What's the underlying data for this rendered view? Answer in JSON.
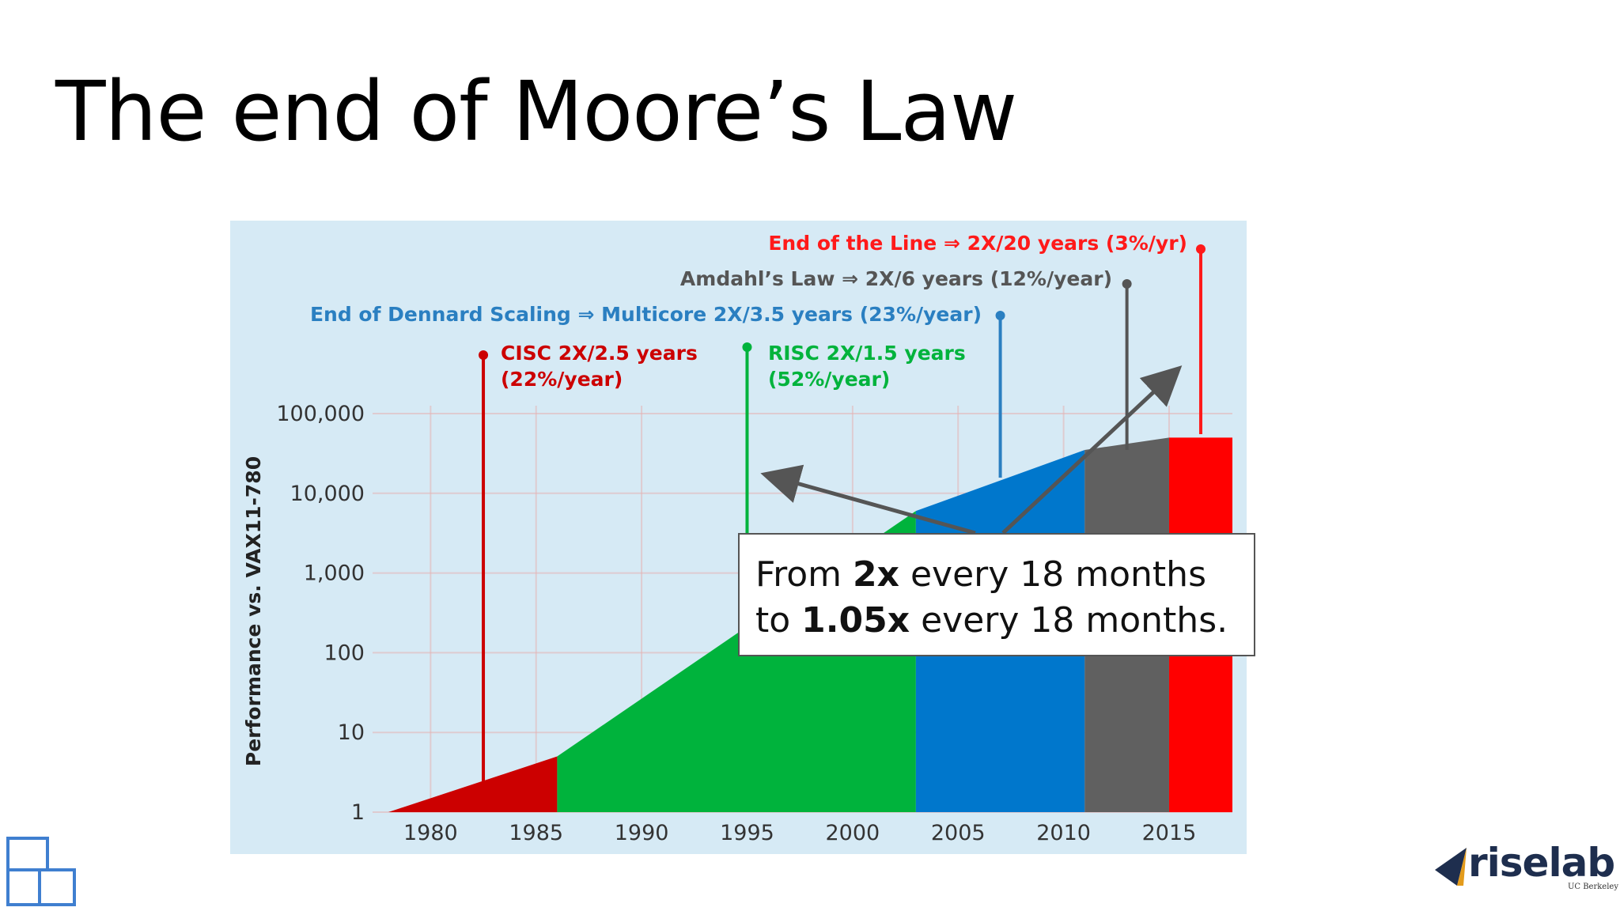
{
  "slide": {
    "title": "The end of Moore’s Law",
    "callout": {
      "line1_pre": "From ",
      "line1_bold": "2x",
      "line1_post": " every 18 months",
      "line2_pre": "to ",
      "line2_bold": "1.05x",
      "line2_post": " every 18 months."
    },
    "logo": {
      "name": "riselab",
      "subtitle": "UC Berkeley",
      "mark_icon": "riselab-triangle-icon"
    },
    "left_logo_icon": "stacked-squares-icon"
  },
  "chart_data": {
    "type": "area",
    "ylabel": "Performance vs. VAX11-780",
    "xlabel": "",
    "x_ticks": [
      1980,
      1985,
      1990,
      1995,
      2000,
      2005,
      2010,
      2015
    ],
    "y_ticks": [
      {
        "value": 1,
        "label": "1"
      },
      {
        "value": 10,
        "label": "10"
      },
      {
        "value": 100,
        "label": "100"
      },
      {
        "value": 1000,
        "label": "1,000"
      },
      {
        "value": 10000,
        "label": "10,000"
      },
      {
        "value": 100000,
        "label": "100,000"
      }
    ],
    "y_scale": "log",
    "xlim": [
      1978,
      2018
    ],
    "ylim": [
      1,
      100000
    ],
    "grid": true,
    "background_color": "#d6eaf5",
    "series": [
      {
        "color": "#cc0000",
        "points": [
          [
            1978,
            1
          ],
          [
            1986,
            5
          ]
        ]
      },
      {
        "color": "#00b33c",
        "points": [
          [
            1986,
            5
          ],
          [
            2003,
            6000
          ]
        ]
      },
      {
        "color": "#0077cc",
        "points": [
          [
            2003,
            6000
          ],
          [
            2011,
            35000
          ]
        ]
      },
      {
        "color": "#606060",
        "points": [
          [
            2011,
            35000
          ],
          [
            2015,
            50000
          ]
        ]
      },
      {
        "color": "#ff0000",
        "points": [
          [
            2015,
            50000
          ],
          [
            2018,
            50000
          ]
        ]
      }
    ],
    "annotations": [
      {
        "x": 1982.5,
        "color": "#cc0000",
        "lines": [
          "CISC 2X/2.5 years",
          "(22%/year)"
        ]
      },
      {
        "x": 1995,
        "color": "#00b33c",
        "lines": [
          "RISC 2X/1.5 years",
          "(52%/year)"
        ]
      },
      {
        "x": 2007,
        "color": "#2a7fc1",
        "lines": [
          "End of Dennard Scaling ⇒ Multicore 2X/3.5 years (23%/year)"
        ]
      },
      {
        "x": 2013,
        "color": "#555555",
        "lines": [
          "Amdahl’s Law ⇒ 2X/6 years (12%/year)"
        ]
      },
      {
        "x": 2016.5,
        "color": "#ff1a1a",
        "lines": [
          "End of the Line ⇒ 2X/20 years (3%/yr)"
        ]
      }
    ]
  }
}
